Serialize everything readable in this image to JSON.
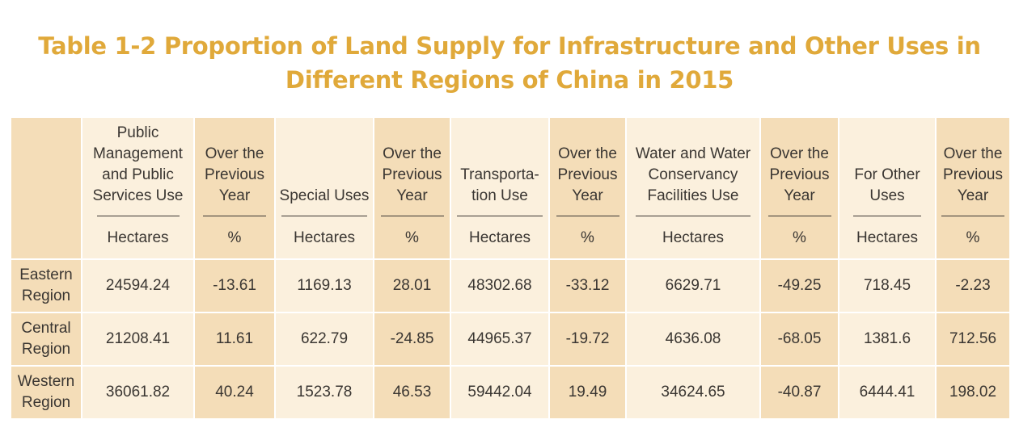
{
  "title": {
    "line1": "Table 1-2 Proportion of Land Supply for Infrastructure and Other Uses in",
    "line2": "Different Regions of China in 2015"
  },
  "table": {
    "columns": [
      {
        "lines": [
          "Public",
          "Management",
          "and Public",
          "Services Use"
        ],
        "unit": "Hectares"
      },
      {
        "lines": [
          "Over the",
          "Previous",
          "Year"
        ],
        "unit": "%"
      },
      {
        "lines": [
          "Special Uses"
        ],
        "unit": "Hectares"
      },
      {
        "lines": [
          "Over the",
          "Previous",
          "Year"
        ],
        "unit": "%"
      },
      {
        "lines": [
          "Transporta-",
          "tion Use"
        ],
        "unit": "Hectares"
      },
      {
        "lines": [
          "Over the",
          "Previous",
          "Year"
        ],
        "unit": "%"
      },
      {
        "lines": [
          "Water and Water",
          "Conservancy",
          "Facilities Use"
        ],
        "unit": "Hectares"
      },
      {
        "lines": [
          "Over the",
          "Previous",
          "Year"
        ],
        "unit": "%"
      },
      {
        "lines": [
          "For Other",
          "Uses"
        ],
        "unit": "Hectares"
      },
      {
        "lines": [
          "Over the",
          "Previous",
          "Year"
        ],
        "unit": "%"
      }
    ],
    "rows": [
      {
        "region": [
          "Eastern",
          "Region"
        ],
        "values": [
          "24594.24",
          "-13.61",
          "1169.13",
          "28.01",
          "48302.68",
          "-33.12",
          "6629.71",
          "-49.25",
          "718.45",
          "-2.23"
        ]
      },
      {
        "region": [
          "Central",
          "Region"
        ],
        "values": [
          "21208.41",
          "11.61",
          "622.79",
          "-24.85",
          "44965.37",
          "-19.72",
          "4636.08",
          "-68.05",
          "1381.6",
          "712.56"
        ]
      },
      {
        "region": [
          "Western",
          "Region"
        ],
        "values": [
          "36061.82",
          "40.24",
          "1523.78",
          "46.53",
          "59442.04",
          "19.49",
          "34624.65",
          "-40.87",
          "6444.41",
          "198.02"
        ]
      }
    ]
  },
  "colors": {
    "title": "#E0A93A",
    "cell_light": "#FBF0DD",
    "cell_dark": "#F4DDB8",
    "text": "#3a3632"
  }
}
